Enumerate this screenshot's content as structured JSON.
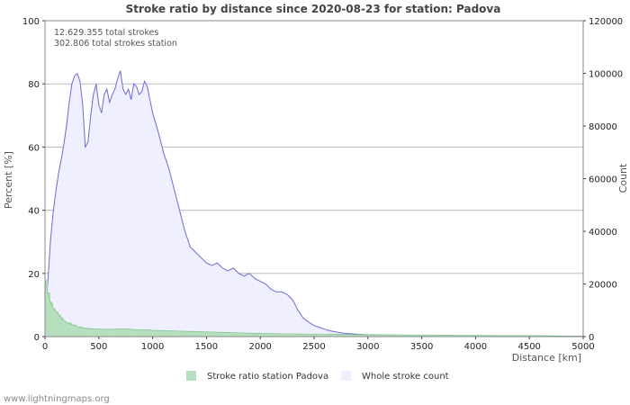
{
  "chart_data": {
    "type": "area",
    "title": "Stroke ratio by distance since 2020-08-23 for station: Padova",
    "xlabel": "Distance   [km]",
    "ylabel_left": "Percent   [%]",
    "ylabel_right": "Count",
    "xlim": [
      0,
      5000
    ],
    "ylim_left": [
      0,
      100
    ],
    "ylim_right": [
      0,
      120000
    ],
    "x_ticks": [
      "0",
      "500",
      "1000",
      "1500",
      "2000",
      "2500",
      "3000",
      "3500",
      "4000",
      "4500",
      "5000"
    ],
    "y_left_ticks": [
      "0",
      "20",
      "40",
      "60",
      "80",
      "100"
    ],
    "y_right_ticks": [
      "0",
      "20000",
      "40000",
      "60000",
      "80000",
      "100000",
      "120000"
    ],
    "grid": true,
    "annotations": [
      "12.629.355 total strokes",
      "302.806 total strokes station"
    ],
    "series": [
      {
        "name": "Whole stroke count",
        "axis": "right",
        "color": "#6b6bd8",
        "fill": "#efefff",
        "x": [
          0,
          25,
          50,
          75,
          100,
          125,
          150,
          175,
          200,
          225,
          250,
          275,
          300,
          325,
          350,
          375,
          400,
          425,
          450,
          475,
          500,
          525,
          550,
          575,
          600,
          625,
          650,
          675,
          700,
          725,
          750,
          775,
          800,
          825,
          850,
          875,
          900,
          925,
          950,
          975,
          1000,
          1050,
          1100,
          1150,
          1200,
          1250,
          1300,
          1350,
          1400,
          1450,
          1500,
          1550,
          1600,
          1650,
          1700,
          1750,
          1800,
          1850,
          1900,
          1950,
          2000,
          2050,
          2100,
          2150,
          2200,
          2250,
          2300,
          2350,
          2400,
          2450,
          2500,
          2550,
          2600,
          2650,
          2700,
          2750,
          2800,
          2900,
          3000,
          3100,
          3200,
          3300,
          3400,
          3500,
          3600,
          3800,
          4000,
          4200,
          4400,
          4600,
          4800,
          5000
        ],
        "values": [
          8000,
          20000,
          36000,
          47000,
          55000,
          62000,
          67000,
          73000,
          80000,
          89000,
          96000,
          99000,
          100000,
          97000,
          88000,
          72000,
          74000,
          84000,
          92000,
          96000,
          88000,
          85000,
          92000,
          94000,
          89000,
          92000,
          94000,
          98000,
          101000,
          94000,
          92000,
          94000,
          90000,
          96000,
          95000,
          92000,
          93000,
          97000,
          95000,
          90000,
          85000,
          78000,
          70000,
          64000,
          56000,
          48000,
          40000,
          34000,
          32000,
          30000,
          28000,
          27000,
          28000,
          26000,
          25000,
          26000,
          24000,
          23000,
          24000,
          22000,
          21000,
          20000,
          18000,
          17000,
          17000,
          16000,
          14000,
          10000,
          7000,
          5500,
          4200,
          3500,
          2800,
          2200,
          1800,
          1400,
          1200,
          900,
          700,
          600,
          500,
          450,
          400,
          350,
          300,
          250,
          200,
          180,
          150,
          120,
          100,
          80
        ]
      },
      {
        "name": "Stroke ratio station Padova",
        "axis": "left",
        "color": "#4fae5f",
        "fill": "#b6dfbd",
        "x": [
          0,
          25,
          50,
          75,
          100,
          125,
          150,
          175,
          200,
          250,
          300,
          350,
          400,
          450,
          500,
          550,
          600,
          650,
          700,
          750,
          800,
          850,
          900,
          950,
          1000,
          1100,
          1200,
          1300,
          1400,
          1500,
          1600,
          1700,
          1800,
          1900,
          2000,
          2200,
          2400,
          2600,
          2800,
          3000,
          3200,
          3400,
          3600,
          3800,
          4000,
          4200,
          4400,
          4600,
          4800,
          5000
        ],
        "values": [
          18,
          14,
          11,
          9,
          8,
          7,
          6,
          5,
          4.5,
          3.8,
          3.2,
          2.8,
          2.6,
          2.4,
          2.4,
          2.3,
          2.3,
          2.4,
          2.5,
          2.4,
          2.3,
          2.2,
          2.2,
          2.1,
          2.0,
          1.9,
          1.8,
          1.7,
          1.6,
          1.5,
          1.4,
          1.3,
          1.2,
          1.1,
          1.0,
          0.9,
          0.8,
          0.8,
          0.7,
          0.6,
          0.6,
          0.5,
          0.5,
          0.4,
          0.4,
          0.3,
          0.3,
          0.3,
          0.2,
          0.2
        ]
      }
    ]
  },
  "legend": {
    "station_label": "Stroke ratio station Padova",
    "whole_label": "Whole stroke count"
  },
  "footer": "www.lightningmaps.org",
  "colors": {
    "grid": "#bbbbbb",
    "frame": "#888888",
    "whole_line": "#6b6bd8",
    "whole_fill": "#efefff",
    "station_fill": "#b6dfbd",
    "station_line": "#4fae5f"
  }
}
